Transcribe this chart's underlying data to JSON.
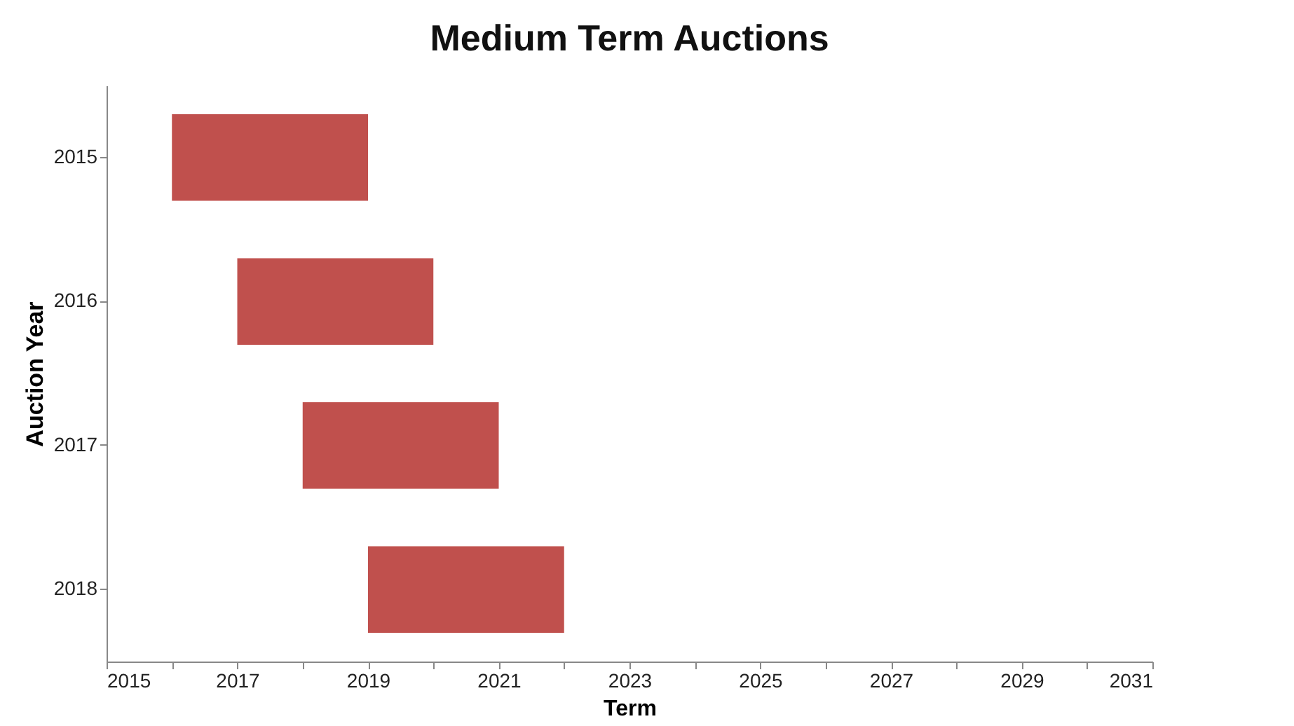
{
  "chart_data": {
    "type": "bar",
    "title": "Medium Term Auctions",
    "xlabel": "Term",
    "ylabel": "Auction Year",
    "orientation": "horizontal",
    "categories": [
      "2015",
      "2016",
      "2017",
      "2018"
    ],
    "base": [
      2016,
      2017,
      2018,
      2019
    ],
    "values": [
      3,
      3,
      3,
      3
    ],
    "color": "#c0504d",
    "xlim": [
      2015,
      2031
    ],
    "xticks": [
      2015,
      {
        "value": 2016,
        "label": null
      },
      2017,
      {
        "value": 2018,
        "label": null
      },
      2019,
      {
        "value": 2020,
        "label": null
      },
      2021,
      {
        "value": 2022,
        "label": null
      },
      2023,
      {
        "value": 2024,
        "label": null
      },
      2025,
      {
        "value": 2026,
        "label": null
      },
      2027,
      {
        "value": 2028,
        "label": null
      },
      2029,
      {
        "value": 2030,
        "label": null
      },
      2031
    ],
    "grid": false
  }
}
